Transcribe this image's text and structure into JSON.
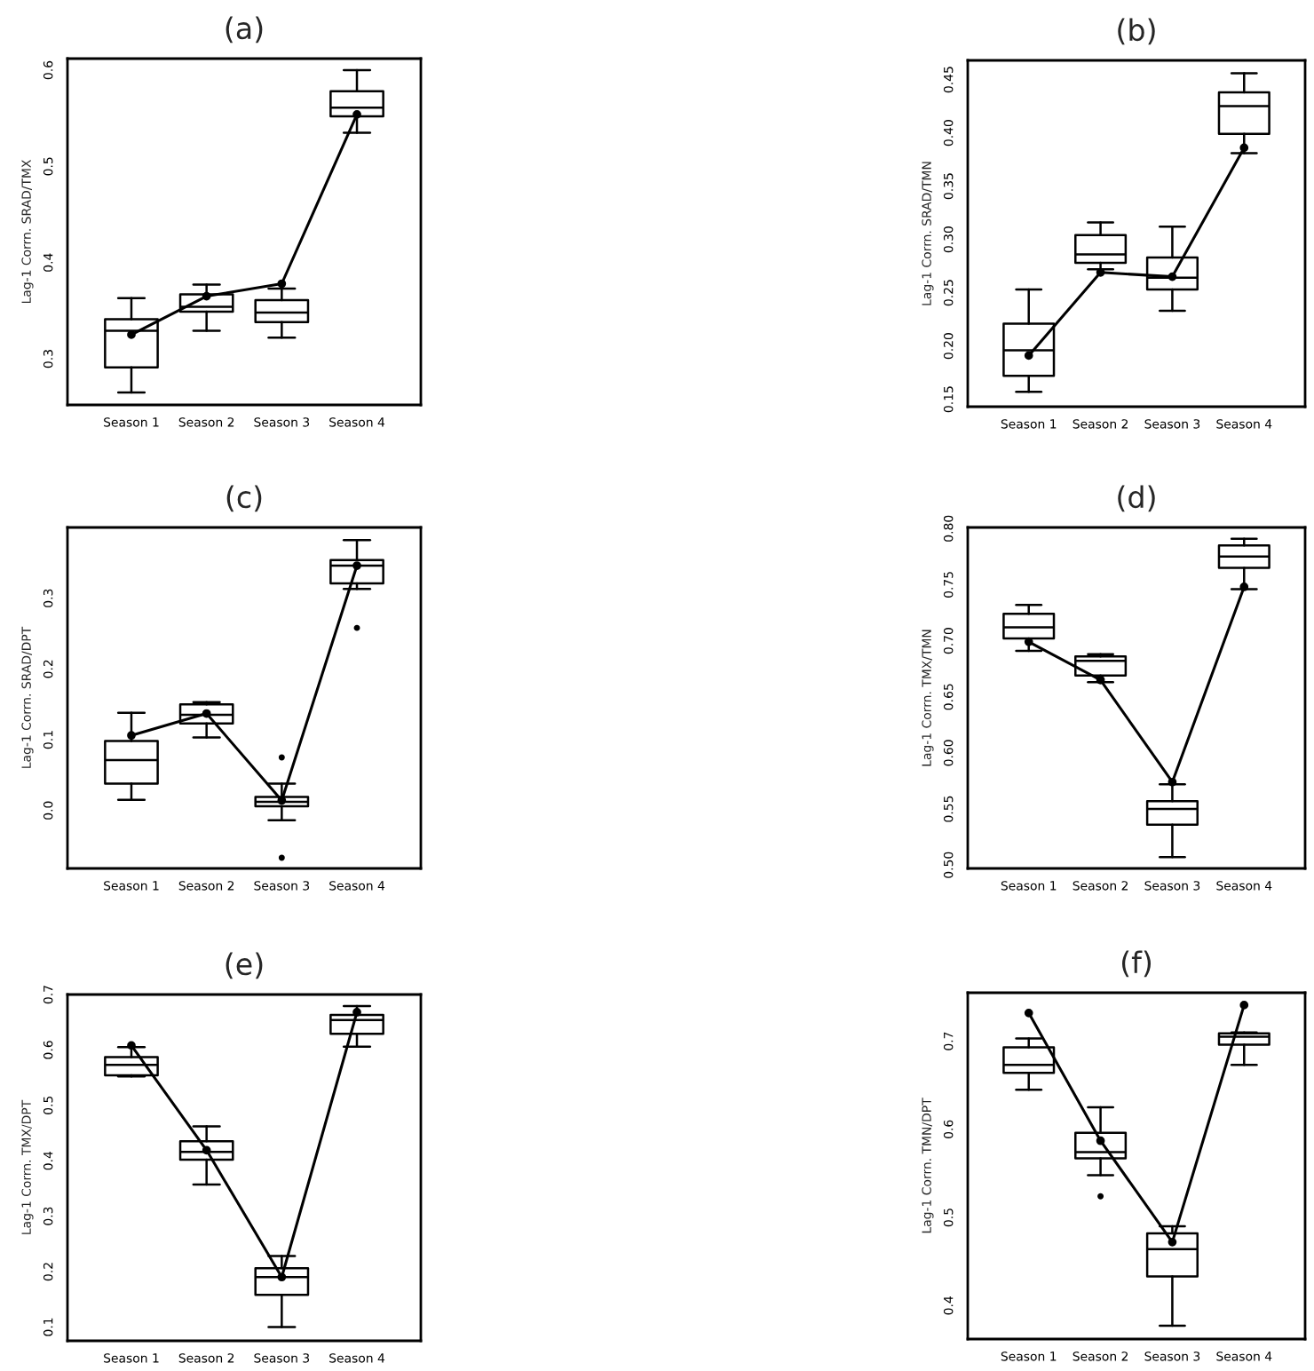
{
  "chart_data": [
    {
      "type": "box",
      "title": "(a)",
      "ylabel": "Lag-1 Corrn. SRAD/TMX",
      "categories": [
        "Season 1",
        "Season 2",
        "Season 3",
        "Season 4"
      ],
      "ylim": [
        0.252,
        0.612
      ],
      "yticks": [
        0.3,
        0.4,
        0.5,
        0.6
      ],
      "series": [
        {
          "color": "#000000",
          "boxes": [
            {
              "low": 0.265,
              "q1": 0.291,
              "median": 0.329,
              "q3": 0.341,
              "high": 0.363
            },
            {
              "low": 0.329,
              "q1": 0.349,
              "median": 0.354,
              "q3": 0.367,
              "high": 0.377
            },
            {
              "low": 0.322,
              "q1": 0.338,
              "median": 0.348,
              "q3": 0.361,
              "high": 0.373
            },
            {
              "low": 0.535,
              "q1": 0.552,
              "median": 0.561,
              "q3": 0.578,
              "high": 0.6
            }
          ]
        },
        {
          "type": "line",
          "color": "#000000",
          "marker": "circle",
          "line_style": "solid",
          "values": [
            0.325,
            0.365,
            0.378,
            0.554
          ]
        }
      ]
    },
    {
      "type": "box",
      "title": "(b)",
      "ylabel": "Lag-1 Corrn. SRAD/TMN",
      "categories": [
        "Season 1",
        "Season 2",
        "Season 3",
        "Season 4"
      ],
      "ylim": [
        0.143,
        0.468
      ],
      "yticks": [
        0.15,
        {
          "value": 0.2,
          "label": "0.20"
        },
        0.25,
        {
          "value": 0.3,
          "label": "0.30"
        },
        0.35,
        {
          "value": 0.4,
          "label": "0.40"
        },
        0.45
      ],
      "series": [
        {
          "color": "#000000",
          "boxes": [
            {
              "low": 0.157,
              "q1": 0.172,
              "median": 0.196,
              "q3": 0.221,
              "high": 0.253
            },
            {
              "low": 0.272,
              "q1": 0.278,
              "median": 0.286,
              "q3": 0.304,
              "high": 0.316
            },
            {
              "low": 0.233,
              "q1": 0.253,
              "median": 0.264,
              "q3": 0.283,
              "high": 0.312
            },
            {
              "low": 0.381,
              "q1": 0.399,
              "median": 0.425,
              "q3": 0.438,
              "high": 0.456
            }
          ]
        },
        {
          "type": "line",
          "color": "#000000",
          "marker": "circle",
          "line_style": "solid",
          "values": [
            0.191,
            0.269,
            0.265,
            0.386
          ]
        }
      ]
    },
    {
      "type": "box",
      "title": "(c)",
      "ylabel": "Lag-1 Corrn. SRAD/DPT",
      "categories": [
        "Season 1",
        "Season 2",
        "Season 3",
        "Season 4"
      ],
      "ylim": [
        -0.082,
        0.4
      ],
      "yticks": [
        {
          "value": 0,
          "label": "0.0"
        },
        0.1,
        0.2,
        0.3
      ],
      "series": [
        {
          "color": "#000000",
          "boxes": [
            {
              "low": 0.015,
              "q1": 0.038,
              "median": 0.071,
              "q3": 0.098,
              "high": 0.138
            },
            {
              "low": 0.103,
              "q1": 0.123,
              "median": 0.135,
              "q3": 0.15,
              "high": 0.153
            },
            {
              "low": -0.014,
              "q1": 0.006,
              "median": 0.012,
              "q3": 0.019,
              "high": 0.038,
              "outliers": [
                0.075,
                -0.067
              ]
            },
            {
              "low": 0.313,
              "q1": 0.321,
              "median": 0.346,
              "q3": 0.354,
              "high": 0.382,
              "outliers": [
                0.258
              ]
            }
          ]
        },
        {
          "type": "line",
          "color": "#000000",
          "marker": "circle",
          "line_style": "solid",
          "values": [
            0.106,
            0.137,
            0.014,
            0.346
          ]
        }
      ]
    },
    {
      "type": "box",
      "title": "(d)",
      "ylabel": "Lag-1 Corrn. TMX/TMN",
      "categories": [
        "Season 1",
        "Season 2",
        "Season 3",
        "Season 4"
      ],
      "ylim": [
        0.497,
        0.801
      ],
      "yticks": [
        {
          "value": 0.5,
          "label": "0.50"
        },
        0.55,
        {
          "value": 0.6,
          "label": "0.60"
        },
        0.65,
        {
          "value": 0.7,
          "label": "0.70"
        },
        0.75,
        {
          "value": 0.8,
          "label": "0.80"
        }
      ],
      "series": [
        {
          "color": "#000000",
          "boxes": [
            {
              "low": 0.691,
              "q1": 0.702,
              "median": 0.712,
              "q3": 0.724,
              "high": 0.732
            },
            {
              "low": 0.663,
              "q1": 0.669,
              "median": 0.682,
              "q3": 0.686,
              "high": 0.688
            },
            {
              "low": 0.507,
              "q1": 0.536,
              "median": 0.55,
              "q3": 0.557,
              "high": 0.572
            },
            {
              "low": 0.746,
              "q1": 0.765,
              "median": 0.775,
              "q3": 0.785,
              "high": 0.791
            }
          ]
        },
        {
          "type": "line",
          "color": "#000000",
          "marker": "circle",
          "line_style": "solid",
          "values": [
            0.699,
            0.665,
            0.574,
            0.748
          ]
        }
      ]
    },
    {
      "type": "box",
      "title": "(e)",
      "ylabel": "Lag-1 Corrn. TMX/DPT",
      "categories": [
        "Season 1",
        "Season 2",
        "Season 3",
        "Season 4"
      ],
      "ylim": [
        0.075,
        0.7
      ],
      "yticks": [
        0.1,
        0.2,
        0.3,
        0.4,
        0.5,
        0.6,
        0.7
      ],
      "series": [
        {
          "color": "#000000",
          "boxes": [
            {
              "low": 0.552,
              "q1": 0.554,
              "median": 0.573,
              "q3": 0.587,
              "high": 0.605
            },
            {
              "low": 0.357,
              "q1": 0.402,
              "median": 0.416,
              "q3": 0.435,
              "high": 0.462
            },
            {
              "low": 0.1,
              "q1": 0.158,
              "median": 0.19,
              "q3": 0.206,
              "high": 0.228
            },
            {
              "low": 0.606,
              "q1": 0.629,
              "median": 0.654,
              "q3": 0.663,
              "high": 0.679
            }
          ]
        },
        {
          "type": "line",
          "color": "#000000",
          "marker": "circle",
          "line_style": "solid",
          "values": [
            0.608,
            0.419,
            0.19,
            0.668
          ]
        }
      ]
    },
    {
      "type": "box",
      "title": "(f)",
      "ylabel": "Lag-1 Corrn. TMN/DPT",
      "categories": [
        "Season 1",
        "Season 2",
        "Season 3",
        "Season 4"
      ],
      "ylim": [
        0.362,
        0.755
      ],
      "yticks": [
        0.4,
        0.5,
        0.6,
        0.7
      ],
      "series": [
        {
          "color": "#000000",
          "boxes": [
            {
              "low": 0.645,
              "q1": 0.664,
              "median": 0.673,
              "q3": 0.693,
              "high": 0.703
            },
            {
              "low": 0.548,
              "q1": 0.567,
              "median": 0.574,
              "q3": 0.596,
              "high": 0.625,
              "outliers": [
                0.524
              ]
            },
            {
              "low": 0.377,
              "q1": 0.433,
              "median": 0.464,
              "q3": 0.482,
              "high": 0.49
            },
            {
              "low": 0.673,
              "q1": 0.696,
              "median": 0.705,
              "q3": 0.709,
              "high": 0.71
            }
          ]
        },
        {
          "type": "line",
          "color": "#000000",
          "marker": "circle",
          "line_style": "solid",
          "values": [
            0.732,
            0.587,
            0.472,
            0.741
          ]
        }
      ]
    }
  ]
}
